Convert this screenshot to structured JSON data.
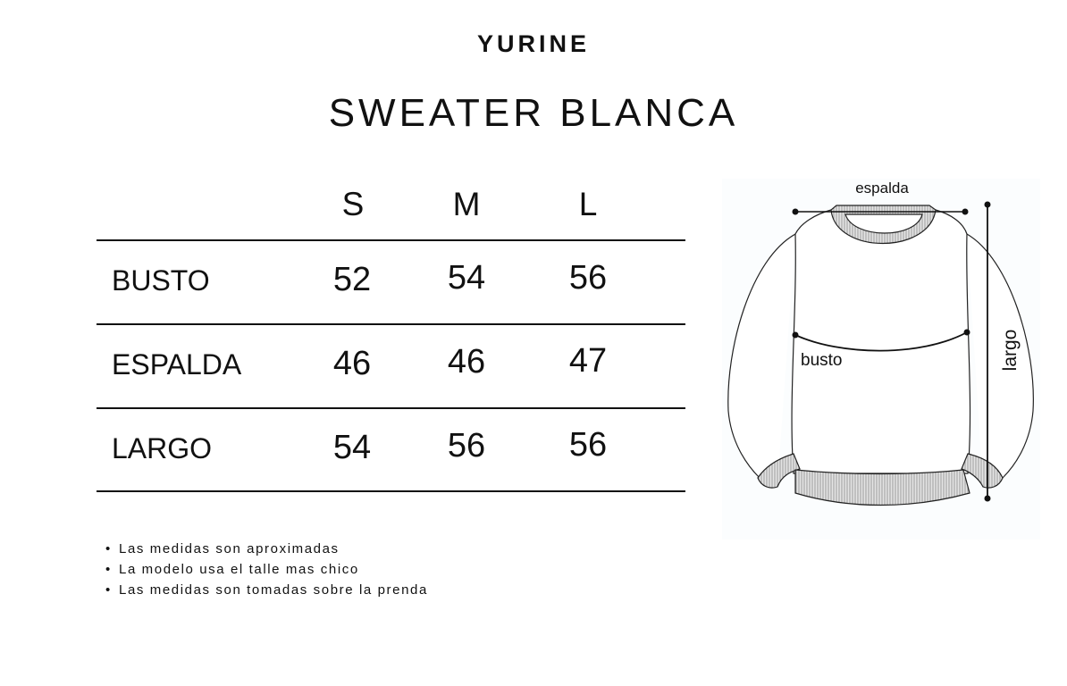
{
  "brand": "YURINE",
  "title": "SWEATER BLANCA",
  "table": {
    "sizes": [
      "S",
      "M",
      "L"
    ],
    "rows": [
      {
        "label": "BUSTO",
        "values": [
          "52",
          "54",
          "56"
        ]
      },
      {
        "label": "ESPALDA",
        "values": [
          "46",
          "46",
          "47"
        ]
      },
      {
        "label": "LARGO",
        "values": [
          "54",
          "56",
          "56"
        ]
      }
    ]
  },
  "notes": [
    "Las medidas son aproximadas",
    "La modelo usa el talle mas chico",
    "Las medidas son tomadas sobre la prenda"
  ],
  "illustration": {
    "labels": {
      "espalda": "espalda",
      "busto": "busto",
      "largo": "largo"
    }
  }
}
